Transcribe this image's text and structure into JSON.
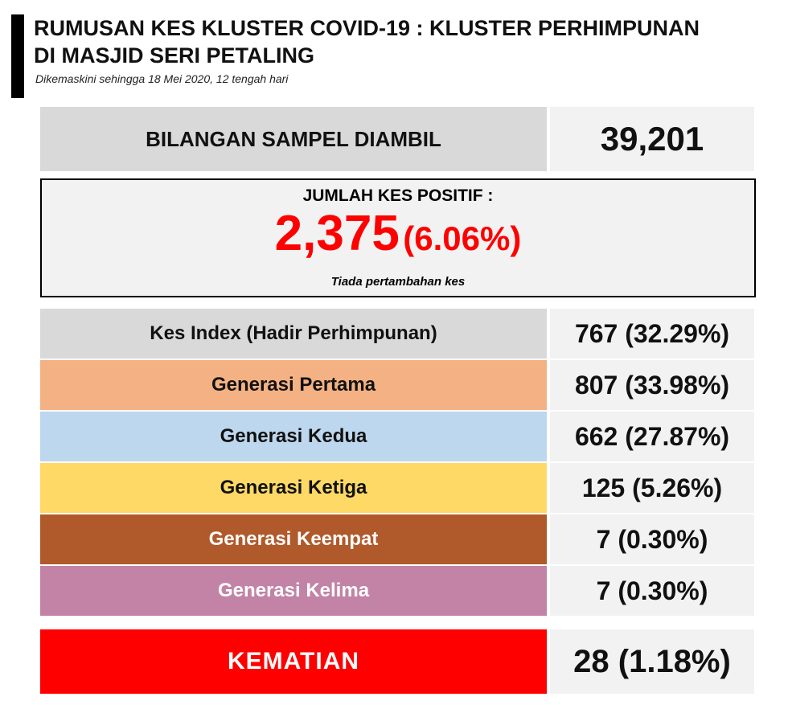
{
  "header": {
    "title": [
      "RUMUSAN KES KLUSTER COVID-19 : KLUSTER PERHIMPUNAN",
      "DI MASJID SERI PETALING"
    ],
    "subtitle": "Dikemaskini sehingga 18 Mei 2020, 12 tengah hari"
  },
  "samples": {
    "label": "BILANGAN SAMPEL  DIAMBIL",
    "value": "39,201"
  },
  "positive": {
    "label": "JUMLAH KES POSITIF :",
    "value": "2,375",
    "percent": "(6.06%)",
    "note": "Tiada pertambahan kes"
  },
  "rows": [
    {
      "label": "Kes Index (Hadir Perhimpunan)",
      "value": "767 (32.29%)",
      "color": "#d9d9d9",
      "text_color": "#111111"
    },
    {
      "label": "Generasi Pertama",
      "value": "807 (33.98%)",
      "color": "#f4b183",
      "text_color": "#111111"
    },
    {
      "label": "Generasi Kedua",
      "value": "662 (27.87%)",
      "color": "#bdd7ee",
      "text_color": "#111111"
    },
    {
      "label": "Generasi Ketiga",
      "value": "125 (5.26%)",
      "color": "#ffd966",
      "text_color": "#111111"
    },
    {
      "label": "Generasi Keempat",
      "value": "7 (0.30%)",
      "color": "#b0592a",
      "text_color": "#ffffff"
    },
    {
      "label": "Generasi Kelima",
      "value": "7 (0.30%)",
      "color": "#c283a6",
      "text_color": "#ffffff"
    }
  ],
  "deaths": {
    "label": "KEMATIAN",
    "value": "28 (1.18%)"
  }
}
